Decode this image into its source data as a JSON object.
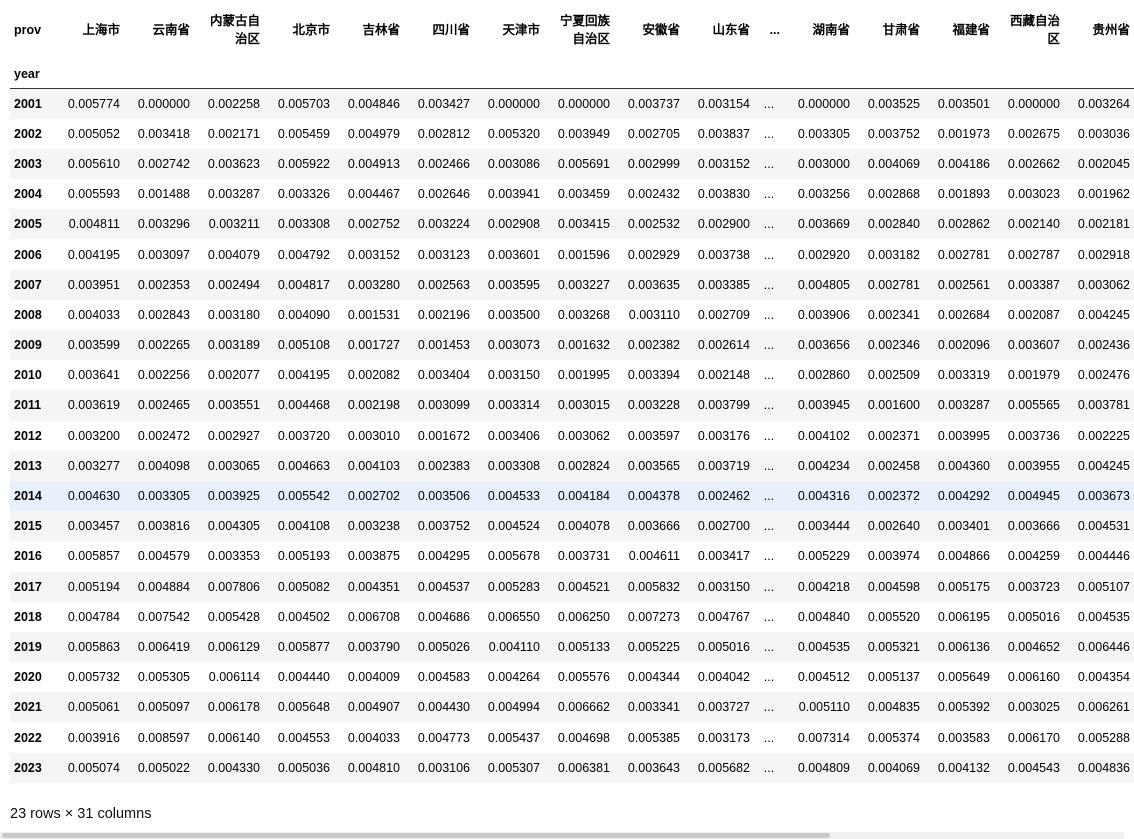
{
  "dataframe": {
    "columns_name": "prov",
    "index_name": "year",
    "columns": [
      "上海市",
      "云南省",
      "内蒙古自治区",
      "北京市",
      "吉林省",
      "四川省",
      "天津市",
      "宁夏回族自治区",
      "安徽省",
      "山东省",
      "...",
      "湖南省",
      "甘肃省",
      "福建省",
      "西藏自治区",
      "贵州省"
    ],
    "rows": [
      {
        "year": "2001",
        "values": [
          "0.005774",
          "0.000000",
          "0.002258",
          "0.005703",
          "0.004846",
          "0.003427",
          "0.000000",
          "0.000000",
          "0.003737",
          "0.003154",
          "...",
          "0.000000",
          "0.003525",
          "0.003501",
          "0.000000",
          "0.003264"
        ]
      },
      {
        "year": "2002",
        "values": [
          "0.005052",
          "0.003418",
          "0.002171",
          "0.005459",
          "0.004979",
          "0.002812",
          "0.005320",
          "0.003949",
          "0.002705",
          "0.003837",
          "...",
          "0.003305",
          "0.003752",
          "0.001973",
          "0.002675",
          "0.003036"
        ]
      },
      {
        "year": "2003",
        "values": [
          "0.005610",
          "0.002742",
          "0.003623",
          "0.005922",
          "0.004913",
          "0.002466",
          "0.003086",
          "0.005691",
          "0.002999",
          "0.003152",
          "...",
          "0.003000",
          "0.004069",
          "0.004186",
          "0.002662",
          "0.002045"
        ]
      },
      {
        "year": "2004",
        "values": [
          "0.005593",
          "0.001488",
          "0.003287",
          "0.003326",
          "0.004467",
          "0.002646",
          "0.003941",
          "0.003459",
          "0.002432",
          "0.003830",
          "...",
          "0.003256",
          "0.002868",
          "0.001893",
          "0.003023",
          "0.001962"
        ]
      },
      {
        "year": "2005",
        "values": [
          "0.004811",
          "0.003296",
          "0.003211",
          "0.003308",
          "0.002752",
          "0.003224",
          "0.002908",
          "0.003415",
          "0.002532",
          "0.002900",
          "...",
          "0.003669",
          "0.002840",
          "0.002862",
          "0.002140",
          "0.002181"
        ]
      },
      {
        "year": "2006",
        "values": [
          "0.004195",
          "0.003097",
          "0.004079",
          "0.004792",
          "0.003152",
          "0.003123",
          "0.003601",
          "0.001596",
          "0.002929",
          "0.003738",
          "...",
          "0.002920",
          "0.003182",
          "0.002781",
          "0.002787",
          "0.002918"
        ]
      },
      {
        "year": "2007",
        "values": [
          "0.003951",
          "0.002353",
          "0.002494",
          "0.004817",
          "0.003280",
          "0.002563",
          "0.003595",
          "0.003227",
          "0.003635",
          "0.003385",
          "...",
          "0.004805",
          "0.002781",
          "0.002561",
          "0.003387",
          "0.003062"
        ]
      },
      {
        "year": "2008",
        "values": [
          "0.004033",
          "0.002843",
          "0.003180",
          "0.004090",
          "0.001531",
          "0.002196",
          "0.003500",
          "0.003268",
          "0.003110",
          "0.002709",
          "...",
          "0.003906",
          "0.002341",
          "0.002684",
          "0.002087",
          "0.004245"
        ]
      },
      {
        "year": "2009",
        "values": [
          "0.003599",
          "0.002265",
          "0.003189",
          "0.005108",
          "0.001727",
          "0.001453",
          "0.003073",
          "0.001632",
          "0.002382",
          "0.002614",
          "...",
          "0.003656",
          "0.002346",
          "0.002096",
          "0.003607",
          "0.002436"
        ]
      },
      {
        "year": "2010",
        "values": [
          "0.003641",
          "0.002256",
          "0.002077",
          "0.004195",
          "0.002082",
          "0.003404",
          "0.003150",
          "0.001995",
          "0.003394",
          "0.002148",
          "...",
          "0.002860",
          "0.002509",
          "0.003319",
          "0.001979",
          "0.002476"
        ]
      },
      {
        "year": "2011",
        "values": [
          "0.003619",
          "0.002465",
          "0.003551",
          "0.004468",
          "0.002198",
          "0.003099",
          "0.003314",
          "0.003015",
          "0.003228",
          "0.003799",
          "...",
          "0.003945",
          "0.001600",
          "0.003287",
          "0.005565",
          "0.003781"
        ]
      },
      {
        "year": "2012",
        "values": [
          "0.003200",
          "0.002472",
          "0.002927",
          "0.003720",
          "0.003010",
          "0.001672",
          "0.003406",
          "0.003062",
          "0.003597",
          "0.003176",
          "...",
          "0.004102",
          "0.002371",
          "0.003995",
          "0.003736",
          "0.002225"
        ]
      },
      {
        "year": "2013",
        "values": [
          "0.003277",
          "0.004098",
          "0.003065",
          "0.004663",
          "0.004103",
          "0.002383",
          "0.003308",
          "0.002824",
          "0.003565",
          "0.003719",
          "...",
          "0.004234",
          "0.002458",
          "0.004360",
          "0.003955",
          "0.004245"
        ]
      },
      {
        "year": "2014",
        "values": [
          "0.004630",
          "0.003305",
          "0.003925",
          "0.005542",
          "0.002702",
          "0.003506",
          "0.004533",
          "0.004184",
          "0.004378",
          "0.002462",
          "...",
          "0.004316",
          "0.002372",
          "0.004292",
          "0.004945",
          "0.003673"
        ],
        "highlight": true
      },
      {
        "year": "2015",
        "values": [
          "0.003457",
          "0.003816",
          "0.004305",
          "0.004108",
          "0.003238",
          "0.003752",
          "0.004524",
          "0.004078",
          "0.003666",
          "0.002700",
          "...",
          "0.003444",
          "0.002640",
          "0.003401",
          "0.003666",
          "0.004531"
        ]
      },
      {
        "year": "2016",
        "values": [
          "0.005857",
          "0.004579",
          "0.003353",
          "0.005193",
          "0.003875",
          "0.004295",
          "0.005678",
          "0.003731",
          "0.004611",
          "0.003417",
          "...",
          "0.005229",
          "0.003974",
          "0.004866",
          "0.004259",
          "0.004446"
        ]
      },
      {
        "year": "2017",
        "values": [
          "0.005194",
          "0.004884",
          "0.007806",
          "0.005082",
          "0.004351",
          "0.004537",
          "0.005283",
          "0.004521",
          "0.005832",
          "0.003150",
          "...",
          "0.004218",
          "0.004598",
          "0.005175",
          "0.003723",
          "0.005107"
        ]
      },
      {
        "year": "2018",
        "values": [
          "0.004784",
          "0.007542",
          "0.005428",
          "0.004502",
          "0.006708",
          "0.004686",
          "0.006550",
          "0.006250",
          "0.007273",
          "0.004767",
          "...",
          "0.004840",
          "0.005520",
          "0.006195",
          "0.005016",
          "0.004535"
        ]
      },
      {
        "year": "2019",
        "values": [
          "0.005863",
          "0.006419",
          "0.006129",
          "0.005877",
          "0.003790",
          "0.005026",
          "0.004110",
          "0.005133",
          "0.005225",
          "0.005016",
          "...",
          "0.004535",
          "0.005321",
          "0.006136",
          "0.004652",
          "0.006446"
        ]
      },
      {
        "year": "2020",
        "values": [
          "0.005732",
          "0.005305",
          "0.006114",
          "0.004440",
          "0.004009",
          "0.004583",
          "0.004264",
          "0.005576",
          "0.004344",
          "0.004042",
          "...",
          "0.004512",
          "0.005137",
          "0.005649",
          "0.006160",
          "0.004354"
        ]
      },
      {
        "year": "2021",
        "values": [
          "0.005061",
          "0.005097",
          "0.006178",
          "0.005648",
          "0.004907",
          "0.004430",
          "0.004994",
          "0.006662",
          "0.003341",
          "0.003727",
          "...",
          "0.005110",
          "0.004835",
          "0.005392",
          "0.003025",
          "0.006261"
        ]
      },
      {
        "year": "2022",
        "values": [
          "0.003916",
          "0.008597",
          "0.006140",
          "0.004553",
          "0.004033",
          "0.004773",
          "0.005437",
          "0.004698",
          "0.005385",
          "0.003173",
          "...",
          "0.007314",
          "0.005374",
          "0.003583",
          "0.006170",
          "0.005288"
        ]
      },
      {
        "year": "2023",
        "values": [
          "0.005074",
          "0.005022",
          "0.004330",
          "0.005036",
          "0.004810",
          "0.003106",
          "0.005307",
          "0.006381",
          "0.003643",
          "0.005682",
          "...",
          "0.004809",
          "0.004069",
          "0.004132",
          "0.004543",
          "0.004836"
        ]
      }
    ],
    "shape_text": "23 rows × 31 columns"
  },
  "colors": {
    "stripe": "#f5f5f5",
    "hover_row": "#e7f0fb",
    "header_rule": "#333333"
  }
}
